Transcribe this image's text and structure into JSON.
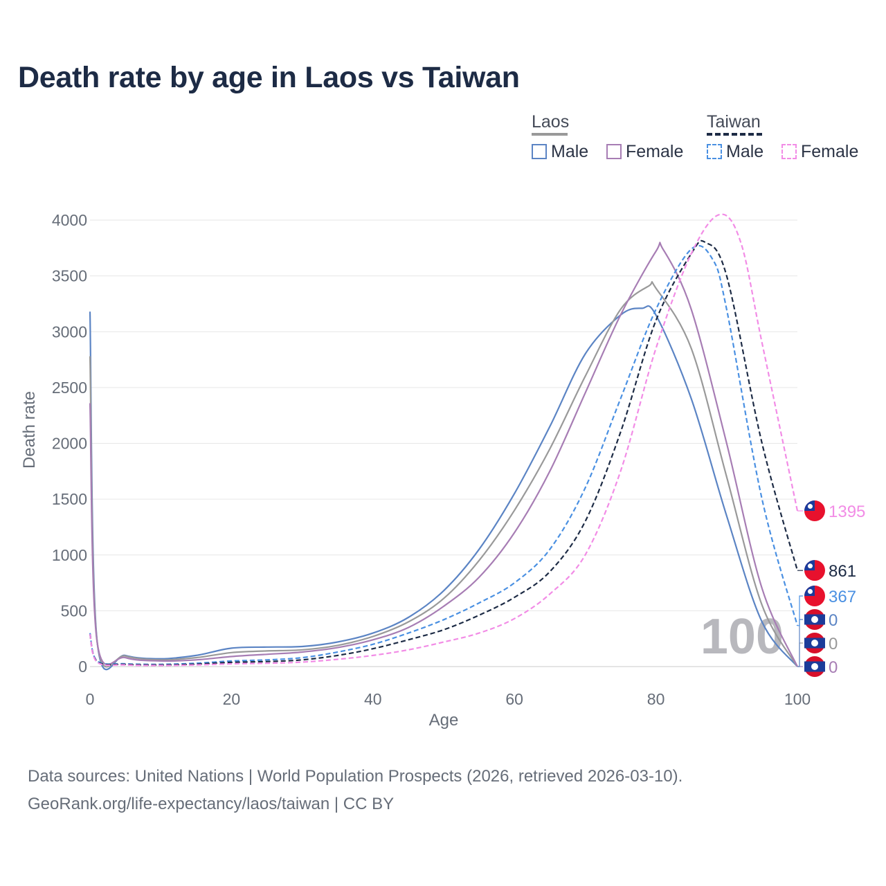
{
  "title": "Death rate by age in Laos vs Taiwan",
  "legend": {
    "groups": [
      {
        "name": "Laos",
        "underline_color": "#999999",
        "dashed": false,
        "items": [
          {
            "label": "Male",
            "color": "#5b84c4"
          },
          {
            "label": "Female",
            "color": "#a77db4"
          }
        ]
      },
      {
        "name": "Taiwan",
        "underline_color": "#1d2b45",
        "dashed": true,
        "items": [
          {
            "label": "Male",
            "color": "#4a90e2"
          },
          {
            "label": "Female",
            "color": "#f28ce6"
          }
        ]
      }
    ]
  },
  "chart_data": {
    "type": "line",
    "title": "Death rate by age in Laos vs Taiwan",
    "xlabel": "Age",
    "ylabel": "Death rate",
    "xlim": [
      0,
      100
    ],
    "ylim": [
      0,
      4000
    ],
    "xticks": [
      0,
      20,
      40,
      60,
      80,
      100
    ],
    "yticks": [
      0,
      500,
      1000,
      1500,
      2000,
      2500,
      3000,
      3500,
      4000
    ],
    "grid": true,
    "year_watermark": "100",
    "series": [
      {
        "name": "Laos Male",
        "country": "Laos",
        "sex": "Male",
        "color": "#5b84c4",
        "dashed": false,
        "end_label": "0",
        "x": [
          0,
          1,
          5,
          10,
          15,
          20,
          25,
          30,
          35,
          40,
          45,
          50,
          55,
          60,
          65,
          70,
          75,
          78,
          80,
          85,
          90,
          95,
          100
        ],
        "y": [
          3180,
          235,
          100,
          70,
          100,
          165,
          175,
          180,
          220,
          300,
          440,
          680,
          1050,
          1550,
          2150,
          2800,
          3150,
          3210,
          3150,
          2400,
          1350,
          400,
          0
        ]
      },
      {
        "name": "Laos Male (avg)",
        "country": "Laos",
        "sex": "Both",
        "color": "#999999",
        "dashed": false,
        "end_label": "0",
        "x": [
          0,
          1,
          5,
          10,
          15,
          20,
          25,
          30,
          35,
          40,
          45,
          50,
          55,
          60,
          65,
          70,
          75,
          79,
          80,
          85,
          90,
          95,
          100
        ],
        "y": [
          2780,
          230,
          95,
          60,
          80,
          125,
          140,
          150,
          190,
          270,
          400,
          610,
          950,
          1400,
          1950,
          2600,
          3200,
          3410,
          3390,
          2850,
          1700,
          550,
          0
        ]
      },
      {
        "name": "Laos Female",
        "country": "Laos",
        "sex": "Female",
        "color": "#a77db4",
        "dashed": false,
        "end_label": "0",
        "x": [
          0,
          1,
          5,
          10,
          15,
          20,
          25,
          30,
          35,
          40,
          45,
          50,
          55,
          60,
          65,
          70,
          75,
          80,
          81,
          85,
          90,
          95,
          100
        ],
        "y": [
          2360,
          225,
          80,
          50,
          60,
          90,
          110,
          130,
          170,
          240,
          350,
          540,
          800,
          1200,
          1750,
          2450,
          3150,
          3720,
          3740,
          3200,
          2000,
          700,
          0
        ]
      },
      {
        "name": "Taiwan Male",
        "country": "Taiwan",
        "sex": "Male",
        "color": "#4a90e2",
        "dashed": true,
        "end_label": "367",
        "x": [
          0,
          1,
          5,
          10,
          15,
          20,
          25,
          30,
          35,
          40,
          45,
          50,
          55,
          60,
          65,
          70,
          75,
          80,
          85,
          88,
          90,
          95,
          100
        ],
        "y": [
          300,
          50,
          25,
          20,
          30,
          50,
          60,
          80,
          130,
          200,
          300,
          420,
          570,
          750,
          1050,
          1600,
          2400,
          3200,
          3740,
          3650,
          3200,
          1500,
          367
        ]
      },
      {
        "name": "Taiwan (avg)",
        "country": "Taiwan",
        "sex": "Both",
        "color": "#1d2b45",
        "dashed": true,
        "end_label": "861",
        "x": [
          0,
          1,
          5,
          10,
          15,
          20,
          25,
          30,
          35,
          40,
          45,
          50,
          55,
          60,
          65,
          70,
          75,
          80,
          85,
          87,
          90,
          95,
          100
        ],
        "y": [
          290,
          45,
          20,
          15,
          22,
          38,
          45,
          60,
          100,
          160,
          240,
          330,
          460,
          620,
          850,
          1300,
          2100,
          3100,
          3700,
          3800,
          3500,
          2000,
          861
        ]
      },
      {
        "name": "Taiwan Female",
        "country": "Taiwan",
        "sex": "Female",
        "color": "#f28ce6",
        "dashed": true,
        "end_label": "1395",
        "x": [
          0,
          1,
          5,
          10,
          15,
          20,
          25,
          30,
          35,
          40,
          45,
          50,
          55,
          60,
          65,
          70,
          75,
          80,
          85,
          89,
          92,
          95,
          100
        ],
        "y": [
          290,
          40,
          15,
          10,
          15,
          25,
          30,
          40,
          65,
          100,
          150,
          220,
          300,
          430,
          650,
          1000,
          1750,
          2850,
          3700,
          4050,
          3800,
          2900,
          1395
        ]
      }
    ]
  },
  "footer": {
    "source": "Data sources: United Nations | World Population Prospects (2026, retrieved 2026-03-10).",
    "link": "GeoRank.org/life-expectancy/laos/taiwan | CC BY"
  }
}
